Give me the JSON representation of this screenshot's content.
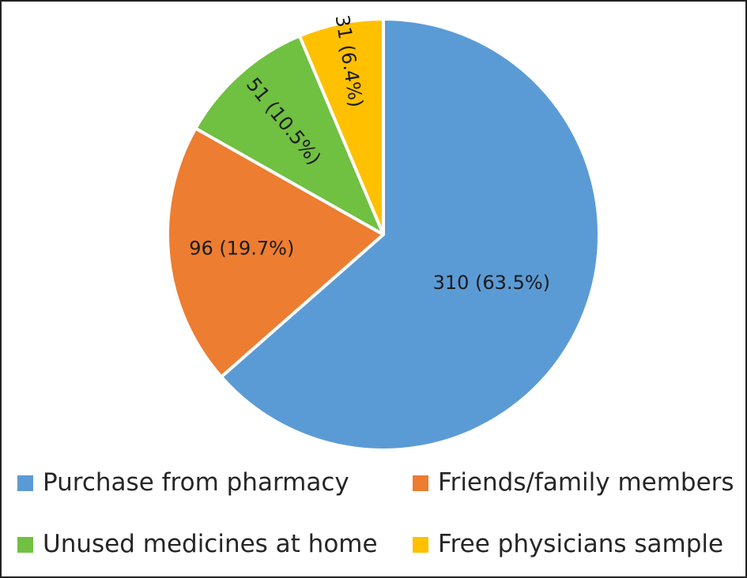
{
  "chart_data": {
    "type": "pie",
    "title": "",
    "slices": [
      {
        "name": "Purchase from pharmacy",
        "value": 310,
        "percent": 63.5,
        "label": "310 (63.5%)",
        "color": "#5b9bd5"
      },
      {
        "name": "Friends/family members",
        "value": 96,
        "percent": 19.7,
        "label": "96 (19.7%)",
        "color": "#ed7d31"
      },
      {
        "name": "Unused medicines at home",
        "value": 51,
        "percent": 10.5,
        "label": "51 (10.5%)",
        "color": "#70c041"
      },
      {
        "name": "Free physicians sample",
        "value": 31,
        "percent": 6.4,
        "label": "31 (6.4%)",
        "color": "#ffc000"
      }
    ],
    "start": "12 o'clock",
    "direction": "clockwise",
    "legend_position": "bottom"
  }
}
